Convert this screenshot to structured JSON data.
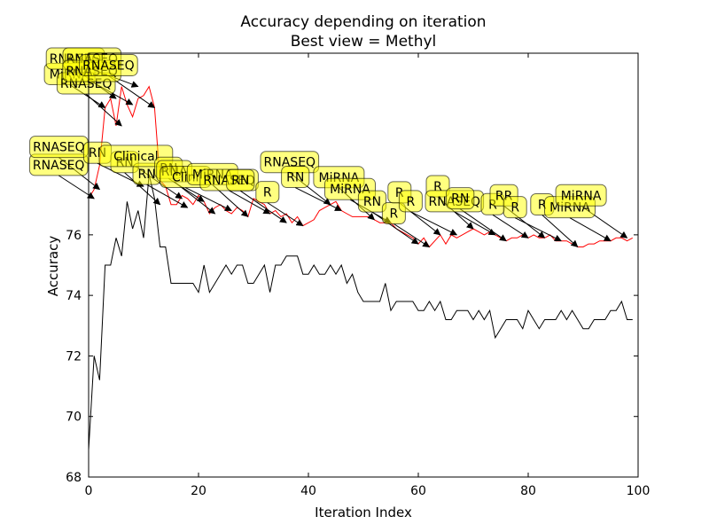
{
  "chart_data": {
    "type": "line",
    "title": "Accuracy depending on iteration",
    "subtitle": "Best view = Methyl",
    "xlabel": "Iteration Index",
    "ylabel": "Accuracy",
    "xlim": [
      0,
      100
    ],
    "ylim": [
      68,
      82
    ],
    "xticks": [
      0,
      20,
      40,
      60,
      80,
      100
    ],
    "yticks": [
      68,
      70,
      72,
      74,
      76
    ],
    "grid": false,
    "series": [
      {
        "color": "#ff0000",
        "x": [
          0,
          1,
          2,
          3,
          4,
          5,
          6,
          7,
          8,
          9,
          10,
          11,
          12,
          13,
          14,
          15,
          16,
          17,
          18,
          19,
          20,
          21,
          22,
          23,
          24,
          25,
          26,
          27,
          28,
          29,
          30,
          31,
          32,
          33,
          34,
          35,
          36,
          37,
          38,
          39,
          40,
          41,
          42,
          43,
          44,
          45,
          46,
          47,
          48,
          49,
          50,
          51,
          52,
          53,
          54,
          55,
          56,
          57,
          58,
          59,
          60,
          61,
          62,
          63,
          64,
          65,
          66,
          67,
          68,
          69,
          70,
          71,
          72,
          73,
          74,
          75,
          76,
          77,
          78,
          79,
          80,
          81,
          82,
          83,
          84,
          85,
          86,
          87,
          88,
          89,
          90,
          91,
          92,
          93,
          94,
          95,
          96,
          97,
          98,
          99
        ],
        "y": [
          77.2,
          77.5,
          78.3,
          80.2,
          80.5,
          79.6,
          80.9,
          80.3,
          79.9,
          80.5,
          80.6,
          80.9,
          80.2,
          77.8,
          77.6,
          77.0,
          77.0,
          77.3,
          77.2,
          77.0,
          77.3,
          77.1,
          76.7,
          76.9,
          77.0,
          76.8,
          76.7,
          76.9,
          76.8,
          76.6,
          77.2,
          77.1,
          77.0,
          76.7,
          76.8,
          76.6,
          76.7,
          76.4,
          76.6,
          76.3,
          76.4,
          76.5,
          76.8,
          76.9,
          77.0,
          77.1,
          76.8,
          76.7,
          76.6,
          76.6,
          76.6,
          76.6,
          76.5,
          76.4,
          76.4,
          76.4,
          76.2,
          76.1,
          76.0,
          75.9,
          75.7,
          75.9,
          75.6,
          75.8,
          76.0,
          75.7,
          76.0,
          75.9,
          76.0,
          76.1,
          76.2,
          76.1,
          76.0,
          76.1,
          76.0,
          75.9,
          75.8,
          75.9,
          75.9,
          76.0,
          75.9,
          76.0,
          75.9,
          75.9,
          76.0,
          75.8,
          75.8,
          75.8,
          75.7,
          75.6,
          75.6,
          75.7,
          75.7,
          75.8,
          75.8,
          75.8,
          75.9,
          75.9,
          75.8,
          75.9
        ]
      },
      {
        "color": "#000000",
        "x": [
          0,
          1,
          2,
          3,
          4,
          5,
          6,
          7,
          8,
          9,
          10,
          11,
          12,
          13,
          14,
          15,
          16,
          17,
          18,
          19,
          20,
          21,
          22,
          23,
          24,
          25,
          26,
          27,
          28,
          29,
          30,
          31,
          32,
          33,
          34,
          35,
          36,
          37,
          38,
          39,
          40,
          41,
          42,
          43,
          44,
          45,
          46,
          47,
          48,
          49,
          50,
          51,
          52,
          53,
          54,
          55,
          56,
          57,
          58,
          59,
          60,
          61,
          62,
          63,
          64,
          65,
          66,
          67,
          68,
          69,
          70,
          71,
          72,
          73,
          74,
          75,
          76,
          77,
          78,
          79,
          80,
          81,
          82,
          83,
          84,
          85,
          86,
          87,
          88,
          89,
          90,
          91,
          92,
          93,
          94,
          95,
          96,
          97,
          98,
          99
        ],
        "y": [
          68.9,
          72.0,
          71.2,
          75.0,
          75.0,
          75.9,
          75.3,
          77.1,
          76.2,
          76.8,
          75.9,
          78.0,
          77.2,
          75.6,
          75.6,
          74.4,
          74.4,
          74.4,
          74.4,
          74.4,
          74.1,
          75.0,
          74.1,
          74.4,
          74.7,
          75.0,
          74.7,
          75.0,
          75.0,
          74.4,
          74.4,
          74.7,
          75.0,
          74.1,
          75.0,
          75.0,
          75.3,
          75.3,
          75.3,
          74.7,
          74.7,
          75.0,
          74.7,
          74.7,
          75.0,
          74.7,
          75.0,
          74.4,
          74.7,
          74.1,
          73.8,
          73.8,
          73.8,
          73.8,
          74.4,
          73.5,
          73.8,
          73.8,
          73.8,
          73.8,
          73.5,
          73.5,
          73.8,
          73.5,
          73.8,
          73.2,
          73.2,
          73.5,
          73.5,
          73.5,
          73.2,
          73.5,
          73.2,
          73.5,
          72.6,
          72.9,
          73.2,
          73.2,
          73.2,
          72.9,
          73.5,
          73.2,
          72.9,
          73.2,
          73.2,
          73.2,
          73.5,
          73.2,
          73.5,
          73.2,
          72.9,
          72.9,
          73.2,
          73.2,
          73.2,
          73.5,
          73.5,
          73.8,
          73.2,
          73.2
        ]
      }
    ],
    "annotations": [
      {
        "text": "MiRNA",
        "x": 3,
        "y": 80.2
      },
      {
        "text": "RNASEQ",
        "x": 5,
        "y": 80.5
      },
      {
        "text": "RNASEQ",
        "x": 9,
        "y": 80.9
      },
      {
        "text": "RNASEQ",
        "x": 6,
        "y": 79.6
      },
      {
        "text": "RNASEQ",
        "x": 8,
        "y": 80.3
      },
      {
        "text": "RNASEQ",
        "x": 12,
        "y": 80.2
      },
      {
        "text": "RNASEQ",
        "x": 1,
        "y": 77.2
      },
      {
        "text": "RNASEQ",
        "x": 2,
        "y": 77.5
      },
      {
        "text": "RN",
        "x": 10,
        "y": 77.6
      },
      {
        "text": "RN",
        "x": 13,
        "y": 77.0
      },
      {
        "text": "RN",
        "x": 18,
        "y": 76.9
      },
      {
        "text": "Clinical",
        "x": 17,
        "y": 77.2
      },
      {
        "text": "RN",
        "x": 21,
        "y": 77.1
      },
      {
        "text": "RNA",
        "x": 23,
        "y": 76.7
      },
      {
        "text": "Clini",
        "x": 26,
        "y": 76.8
      },
      {
        "text": "MiRNA",
        "x": 29,
        "y": 76.6
      },
      {
        "text": "RNASEQ",
        "x": 33,
        "y": 76.7
      },
      {
        "text": "RN",
        "x": 36,
        "y": 76.4
      },
      {
        "text": "R",
        "x": 39,
        "y": 76.3
      },
      {
        "text": "RNASEQ",
        "x": 44,
        "y": 77.0
      },
      {
        "text": "RN",
        "x": 46,
        "y": 76.8
      },
      {
        "text": "MiRNA",
        "x": 52,
        "y": 76.5
      },
      {
        "text": "MiRNA",
        "x": 55,
        "y": 76.4
      },
      {
        "text": "RN",
        "x": 60,
        "y": 75.7
      },
      {
        "text": "R",
        "x": 62,
        "y": 75.6
      },
      {
        "text": "R",
        "x": 64,
        "y": 76.0
      },
      {
        "text": "R",
        "x": 67,
        "y": 76.0
      },
      {
        "text": "R",
        "x": 70,
        "y": 76.2
      },
      {
        "text": "RNASEQ",
        "x": 74,
        "y": 76.0
      },
      {
        "text": "RN",
        "x": 76,
        "y": 75.8
      },
      {
        "text": "R",
        "x": 80,
        "y": 75.9
      },
      {
        "text": "RR",
        "x": 83,
        "y": 75.9
      },
      {
        "text": "R",
        "x": 86,
        "y": 75.8
      },
      {
        "text": "R",
        "x": 89,
        "y": 75.6
      },
      {
        "text": "MiRNA",
        "x": 95,
        "y": 75.8
      },
      {
        "text": "MiRNA",
        "x": 98,
        "y": 75.9
      }
    ]
  }
}
